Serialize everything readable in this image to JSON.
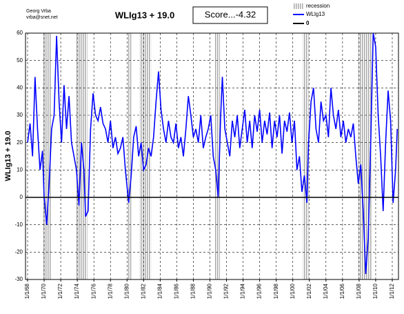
{
  "chart_data": {
    "type": "line",
    "title": "WLIg13 + 19.0",
    "score": "Score...-4.32",
    "author": "Georg Vrba",
    "email": "vrba@snet.net",
    "y_label": "WLIg13 + 19.0",
    "xlim": [
      1967.75,
      2012.75
    ],
    "ylim": [
      -30,
      60
    ],
    "yticks": [
      -30,
      -20,
      -10,
      0,
      10,
      20,
      30,
      40,
      50,
      60
    ],
    "xticks": [
      {
        "value": 1968,
        "label": "1/1/68"
      },
      {
        "value": 1970,
        "label": "1/1/70"
      },
      {
        "value": 1972,
        "label": "1/1/72"
      },
      {
        "value": 1974,
        "label": "1/1/74"
      },
      {
        "value": 1976,
        "label": "1/1/76"
      },
      {
        "value": 1978,
        "label": "1/1/78"
      },
      {
        "value": 1980,
        "label": "1/1/80"
      },
      {
        "value": 1982,
        "label": "1/1/82"
      },
      {
        "value": 1984,
        "label": "1/1/84"
      },
      {
        "value": 1986,
        "label": "1/1/86"
      },
      {
        "value": 1988,
        "label": "1/1/88"
      },
      {
        "value": 1990,
        "label": "1/1/90"
      },
      {
        "value": 1992,
        "label": "1/1/92"
      },
      {
        "value": 1994,
        "label": "1/1/94"
      },
      {
        "value": 1996,
        "label": "1/1/96"
      },
      {
        "value": 1998,
        "label": "1/1/98"
      },
      {
        "value": 2000,
        "label": "1/1/00"
      },
      {
        "value": 2002,
        "label": "1/1/02"
      },
      {
        "value": 2004,
        "label": "1/1/04"
      },
      {
        "value": 2006,
        "label": "1/1/06"
      },
      {
        "value": 2008,
        "label": "1/1/08"
      },
      {
        "value": 2010,
        "label": "1/1/10"
      },
      {
        "value": 2012,
        "label": "1/1/12"
      }
    ],
    "grid": true,
    "recession": {
      "name": "recession",
      "color": "#b0b0b0",
      "ranges": [
        [
          1969.9,
          1970.9
        ],
        [
          1973.9,
          1975.2
        ],
        [
          1980.0,
          1980.5
        ],
        [
          1981.5,
          1982.9
        ],
        [
          1990.6,
          1991.2
        ],
        [
          2001.2,
          2001.9
        ],
        [
          2007.9,
          2009.5
        ]
      ]
    },
    "zero_line": {
      "name": "0",
      "color": "#000000",
      "value": 0
    },
    "x": [
      1968.0,
      1968.3,
      1968.6,
      1968.9,
      1969.2,
      1969.5,
      1969.8,
      1970.0,
      1970.3,
      1970.6,
      1970.9,
      1971.2,
      1971.5,
      1971.8,
      1972.1,
      1972.4,
      1972.7,
      1973.0,
      1973.3,
      1973.6,
      1973.9,
      1974.2,
      1974.5,
      1974.8,
      1975.0,
      1975.3,
      1975.6,
      1975.9,
      1976.2,
      1976.5,
      1976.8,
      1977.1,
      1977.4,
      1977.7,
      1978.0,
      1978.3,
      1978.6,
      1978.9,
      1979.2,
      1979.5,
      1979.8,
      1980.2,
      1980.5,
      1980.8,
      1981.1,
      1981.4,
      1981.7,
      1982.0,
      1982.3,
      1982.6,
      1982.9,
      1983.2,
      1983.5,
      1983.8,
      1984.1,
      1984.4,
      1984.7,
      1985.0,
      1985.3,
      1985.6,
      1985.9,
      1986.2,
      1986.5,
      1986.8,
      1987.1,
      1987.4,
      1987.7,
      1988.0,
      1988.3,
      1988.6,
      1988.9,
      1989.2,
      1989.5,
      1989.8,
      1990.1,
      1990.4,
      1990.7,
      1991.0,
      1991.3,
      1991.5,
      1991.8,
      1992.1,
      1992.4,
      1992.7,
      1993.0,
      1993.3,
      1993.6,
      1993.9,
      1994.2,
      1994.5,
      1994.8,
      1995.1,
      1995.4,
      1995.7,
      1996.0,
      1996.3,
      1996.6,
      1996.9,
      1997.2,
      1997.5,
      1997.8,
      1998.1,
      1998.4,
      1998.7,
      1999.0,
      1999.3,
      1999.6,
      1999.9,
      2000.2,
      2000.5,
      2000.8,
      2001.1,
      2001.4,
      2001.7,
      2001.9,
      2002.2,
      2002.5,
      2002.8,
      2003.1,
      2003.4,
      2003.7,
      2004.0,
      2004.3,
      2004.6,
      2004.9,
      2005.2,
      2005.5,
      2005.8,
      2006.1,
      2006.4,
      2006.7,
      2007.0,
      2007.3,
      2007.6,
      2007.9,
      2008.2,
      2008.5,
      2008.8,
      2009.1,
      2009.4,
      2009.7,
      2010.0,
      2010.3,
      2010.6,
      2010.9,
      2011.2,
      2011.5,
      2011.8,
      2012.1,
      2012.4,
      2012.6
    ],
    "series": [
      {
        "name": "WLlg13",
        "color": "#0000ff",
        "values": [
          20,
          27,
          15,
          44,
          25,
          10,
          17,
          0,
          -10,
          5,
          25,
          30,
          59,
          35,
          20,
          41,
          25,
          37,
          20,
          15,
          10,
          -3,
          20,
          10,
          -7,
          -5,
          25,
          38,
          30,
          28,
          33,
          27,
          25,
          20,
          28,
          18,
          22,
          16,
          18,
          22,
          10,
          -2,
          8,
          22,
          26,
          15,
          20,
          10,
          12,
          18,
          15,
          22,
          35,
          46,
          32,
          25,
          20,
          28,
          22,
          20,
          27,
          18,
          22,
          15,
          25,
          37,
          30,
          22,
          25,
          20,
          30,
          18,
          22,
          25,
          30,
          15,
          10,
          0,
          30,
          44,
          25,
          20,
          15,
          28,
          22,
          30,
          18,
          25,
          32,
          20,
          28,
          18,
          30,
          24,
          32,
          20,
          28,
          23,
          31,
          18,
          28,
          22,
          30,
          16,
          28,
          24,
          31,
          20,
          28,
          10,
          15,
          2,
          8,
          -2,
          20,
          35,
          40,
          25,
          20,
          35,
          28,
          30,
          22,
          40,
          30,
          25,
          32,
          22,
          28,
          20,
          25,
          22,
          27,
          15,
          5,
          12,
          -5,
          -28,
          -15,
          20,
          60,
          55,
          30,
          15,
          -5,
          20,
          39,
          28,
          -2,
          10,
          25
        ]
      }
    ]
  }
}
